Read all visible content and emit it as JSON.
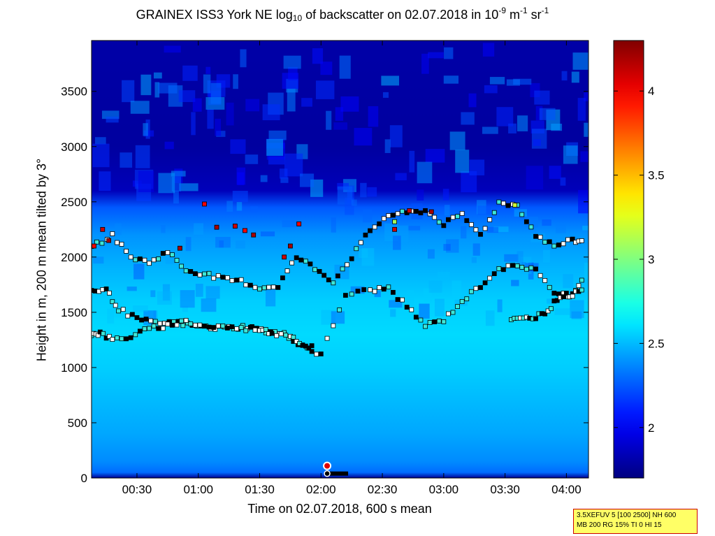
{
  "title": {
    "part1": "GRAINEX ISS3 York NE log",
    "sub": "10",
    "part2": " of backscatter on 02.07.2018 in 10",
    "sup1": "-9",
    "part3": " m",
    "sup2": "-1",
    "part4": " sr",
    "sup3": "-1"
  },
  "info_box": {
    "line1": "3.5XEFUV 5 [100 2500] NH 600",
    "line2": "MB 200 RG 15% TI 0 HI 15"
  },
  "chart_data": {
    "type": "heatmap",
    "xlabel": "Time on 02.07.2018, 600 s mean",
    "ylabel": "Height in m, 200 m mean tilted by 3°",
    "x_unit": "hours after 00:00",
    "xlim": [
      0.13,
      4.18
    ],
    "ylim": [
      0,
      3960
    ],
    "x_ticks": [
      {
        "label": "00:30",
        "value": 0.5
      },
      {
        "label": "01:00",
        "value": 1.0
      },
      {
        "label": "01:30",
        "value": 1.5
      },
      {
        "label": "02:00",
        "value": 2.0
      },
      {
        "label": "02:30",
        "value": 2.5
      },
      {
        "label": "03:00",
        "value": 3.0
      },
      {
        "label": "03:30",
        "value": 3.5
      },
      {
        "label": "04:00",
        "value": 4.0
      }
    ],
    "y_ticks": [
      {
        "label": "0",
        "value": 0
      },
      {
        "label": "500",
        "value": 500
      },
      {
        "label": "1000",
        "value": 1000
      },
      {
        "label": "1500",
        "value": 1500
      },
      {
        "label": "2000",
        "value": 2000
      },
      {
        "label": "2500",
        "value": 2500
      },
      {
        "label": "3000",
        "value": 3000
      },
      {
        "label": "3500",
        "value": 3500
      }
    ],
    "colorbar": {
      "range": [
        1.7,
        4.3
      ],
      "ticks": [
        {
          "label": "2",
          "value": 2
        },
        {
          "label": "2.5",
          "value": 2.5
        },
        {
          "label": "3",
          "value": 3
        },
        {
          "label": "3.5",
          "value": 3.5
        },
        {
          "label": "4",
          "value": 4
        }
      ],
      "colormap": "jet"
    },
    "background_profile": {
      "note_units": "height m -> log10 backscatter",
      "heights": [
        0,
        50,
        150,
        400,
        700,
        1000,
        1300,
        1600,
        1900,
        2200,
        2450,
        2600,
        3000,
        3960
      ],
      "values": [
        1.75,
        2.3,
        2.38,
        2.45,
        2.5,
        2.55,
        2.58,
        2.55,
        2.48,
        2.4,
        2.25,
        1.85,
        1.78,
        1.8
      ]
    },
    "layers": [
      {
        "name": "upper",
        "x": [
          0.13,
          0.3,
          0.45,
          0.6,
          0.75,
          0.9,
          1.05,
          1.2,
          1.35,
          1.5,
          1.65,
          1.8,
          1.95,
          2.1,
          2.25,
          2.4,
          2.55,
          2.7,
          2.85,
          3.0,
          3.15,
          3.3,
          3.45,
          3.6,
          3.75,
          3.9,
          4.05,
          4.15
        ],
        "y": [
          2090,
          2200,
          2000,
          1950,
          2050,
          1880,
          1850,
          1800,
          1780,
          1720,
          1740,
          2000,
          1900,
          1780,
          2000,
          2240,
          2380,
          2400,
          2420,
          2300,
          2380,
          2200,
          2490,
          2470,
          2200,
          2100,
          2150,
          2140
        ]
      },
      {
        "name": "middle",
        "x": [
          0.13,
          0.25,
          0.35,
          0.5,
          0.65,
          0.8,
          0.95,
          1.1,
          1.25,
          1.4,
          1.55,
          1.7,
          1.85,
          2.0,
          2.2,
          2.4,
          2.55,
          2.7,
          2.85,
          3.0,
          3.15,
          3.3,
          3.45,
          3.6,
          3.75,
          3.9,
          4.05,
          4.15
        ],
        "y": [
          1700,
          1700,
          1530,
          1440,
          1400,
          1410,
          1380,
          1360,
          1360,
          1370,
          1330,
          1300,
          1200,
          1110,
          1660,
          1700,
          1720,
          1550,
          1380,
          1430,
          1600,
          1740,
          1900,
          1910,
          1900,
          1660,
          1660,
          1850
        ]
      },
      {
        "name": "lower",
        "x": [
          0.13,
          0.2,
          0.3,
          0.45,
          0.6,
          0.75,
          0.9,
          1.05,
          1.2,
          1.35,
          1.5,
          1.6,
          1.75,
          1.85,
          1.95
        ],
        "y": [
          1300,
          1310,
          1250,
          1280,
          1350,
          1380,
          1420,
          1370,
          1370,
          1350,
          1350,
          1310,
          1300,
          1200,
          1180
        ]
      },
      {
        "name": "late-lower",
        "x": [
          3.55,
          3.65,
          3.75,
          3.85,
          3.95,
          4.05,
          4.15
        ],
        "y": [
          1430,
          1440,
          1460,
          1520,
          1650,
          1660,
          1740
        ]
      }
    ],
    "markers": [
      {
        "x": 0.15,
        "y": 2100,
        "v": 4.0
      },
      {
        "x": 0.22,
        "y": 2250,
        "v": 4.1
      },
      {
        "x": 0.27,
        "y": 2150,
        "v": 4.2
      },
      {
        "x": 1.05,
        "y": 2480,
        "v": 4.0
      },
      {
        "x": 1.15,
        "y": 2270,
        "v": 4.2
      },
      {
        "x": 1.3,
        "y": 2280,
        "v": 4.1
      },
      {
        "x": 1.38,
        "y": 2240,
        "v": 4.0
      },
      {
        "x": 1.45,
        "y": 2200,
        "v": 4.2
      },
      {
        "x": 1.7,
        "y": 2000,
        "v": 4.1
      },
      {
        "x": 1.75,
        "y": 2100,
        "v": 4.2
      },
      {
        "x": 1.82,
        "y": 2300,
        "v": 4.0
      },
      {
        "x": 2.6,
        "y": 2250,
        "v": 4.1
      },
      {
        "x": 2.72,
        "y": 2420,
        "v": 4.1
      },
      {
        "x": 2.9,
        "y": 2410,
        "v": 4.2
      },
      {
        "x": 3.58,
        "y": 2470,
        "v": 3.2
      },
      {
        "x": 2.6,
        "y": 2320,
        "v": 3.1
      },
      {
        "x": 0.85,
        "y": 2080,
        "v": 4.2
      }
    ],
    "ground_markers": [
      {
        "x": 2.05,
        "y": 110
      },
      {
        "x": 2.05,
        "y": 40
      }
    ]
  }
}
